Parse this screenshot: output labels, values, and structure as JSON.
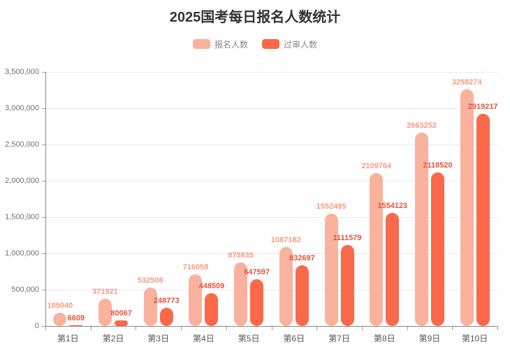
{
  "chart_data": {
    "type": "bar",
    "title": "2025国考每日报名人数统计",
    "categories": [
      "第1日",
      "第2日",
      "第3日",
      "第4日",
      "第5日",
      "第6日",
      "第7日",
      "第8日",
      "第9日",
      "第10日"
    ],
    "series": [
      {
        "name": "报名人数",
        "color": "#f9b29d",
        "label_color": "#f79c81",
        "values": [
          185040,
          371921,
          532508,
          716058,
          875835,
          1087182,
          1552495,
          2109764,
          2663252,
          3258274
        ]
      },
      {
        "name": "过审人数",
        "color": "#f9694a",
        "label_color": "#e35538",
        "values": [
          6609,
          80067,
          248773,
          448509,
          647597,
          832697,
          1111579,
          1554123,
          2118520,
          2919217
        ]
      }
    ],
    "xlabel": "",
    "ylabel": "",
    "ylim": [
      0,
      3500000
    ],
    "y_ticks": [
      0,
      500000,
      1000000,
      1500000,
      2000000,
      2500000,
      3000000,
      3500000
    ],
    "y_tick_labels": [
      "0",
      "500,000",
      "1,000,000",
      "1,500,000",
      "2,000,000",
      "2,500,000",
      "3,000,000",
      "3,500,000"
    ],
    "grid": true,
    "legend_position": "top",
    "bar_value_labels": true
  },
  "colors": {
    "title": "#333333",
    "legend_text": "#888888",
    "gridline": "#e9e9e9",
    "axis": "#888888"
  }
}
